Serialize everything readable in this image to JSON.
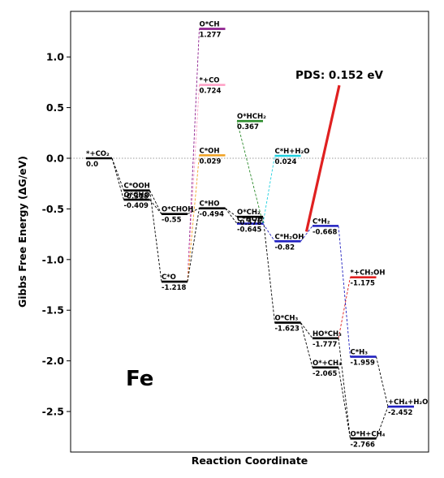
{
  "chart_data": {
    "type": "line",
    "xlabel": "Reaction Coordinate",
    "ylabel": "Gibbs Free Energy (ΔG/eV)",
    "ylim": [
      -2.9,
      1.45
    ],
    "yticks": [
      "1.0",
      "0.5",
      "0.0",
      "-0.5",
      "-1.0",
      "-1.5",
      "-2.0",
      "-2.5"
    ],
    "ytick_values": [
      1.0,
      0.5,
      0.0,
      -0.5,
      -1.0,
      -1.5,
      -2.0,
      -2.5
    ],
    "grid": false,
    "zero_line": true,
    "element_label": "Fe",
    "annotation": "PDS: 0.152 eV",
    "annotation_color": "#e02020",
    "levels": [
      {
        "id": "co2",
        "label": "*+CO₂",
        "value_text": "0.0",
        "x": 1,
        "y": 0.0,
        "color": "#000000"
      },
      {
        "id": "cooh",
        "label": "C*OOH",
        "value_text": "-0.318",
        "x": 2,
        "y": -0.318,
        "color": "#000000"
      },
      {
        "id": "ocho",
        "label": "O*CHO",
        "value_text": "-0.409",
        "x": 2,
        "y": -0.409,
        "color": "#000000"
      },
      {
        "id": "co",
        "label": "C*O",
        "value_text": "-1.218",
        "x": 3,
        "y": -1.218,
        "color": "#000000"
      },
      {
        "id": "ochoh",
        "label": "O*CHOH",
        "value_text": "-0.55",
        "x": 3,
        "y": -0.55,
        "color": "#000000"
      },
      {
        "id": "och",
        "label": "O*CH",
        "value_text": "1.277",
        "x": 4,
        "y": 1.277,
        "color": "#8b1a8b"
      },
      {
        "id": "plusco",
        "label": "*+CO",
        "value_text": "0.724",
        "x": 4,
        "y": 0.724,
        "color": "#ff9ec4"
      },
      {
        "id": "coh",
        "label": "C*OH",
        "value_text": "0.029",
        "x": 4,
        "y": 0.029,
        "color": "#f0a020"
      },
      {
        "id": "cho",
        "label": "C*HO",
        "value_text": "-0.494",
        "x": 4,
        "y": -0.494,
        "color": "#000000"
      },
      {
        "id": "ohch2",
        "label": "O*HCH₂",
        "value_text": "0.367",
        "x": 5,
        "y": 0.367,
        "color": "#2a8a2a"
      },
      {
        "id": "ch2",
        "label": "O*CH₂",
        "value_text": "-0.578",
        "x": 5,
        "y": -0.578,
        "color": "#000000"
      },
      {
        "id": "choh",
        "label": "C*HOH",
        "value_text": "-0.645",
        "x": 5,
        "y": -0.645,
        "color": "#2020c0"
      },
      {
        "id": "chh2o",
        "label": "C*H+H₂O",
        "value_text": "0.024",
        "x": 6,
        "y": 0.024,
        "color": "#20d0e0"
      },
      {
        "id": "ch2oh",
        "label": "C*H₂OH",
        "value_text": "-0.82",
        "x": 6,
        "y": -0.82,
        "color": "#2020c0"
      },
      {
        "id": "och3",
        "label": "O*CH₃",
        "value_text": "-1.623",
        "x": 6,
        "y": -1.623,
        "color": "#000000"
      },
      {
        "id": "hoch3",
        "label": "HO*CH₃",
        "value_text": "-1.777",
        "x": 7,
        "y": -1.777,
        "color": "#000000"
      },
      {
        "id": "och4",
        "label": "O*+CH₄",
        "value_text": "-2.065",
        "x": 7,
        "y": -2.065,
        "color": "#000000"
      },
      {
        "id": "ch2b",
        "label": "C*H₂",
        "value_text": "-0.668",
        "x": 7,
        "y": -0.668,
        "color": "#2020c0"
      },
      {
        "id": "ch3oh",
        "label": "*+CH₃OH",
        "value_text": "-1.175",
        "x": 8,
        "y": -1.175,
        "color": "#e02020"
      },
      {
        "id": "ch3",
        "label": "C*H₃",
        "value_text": "-1.959",
        "x": 8,
        "y": -1.959,
        "color": "#2020c0"
      },
      {
        "id": "ohch4",
        "label": "O*H+CH₄",
        "value_text": "-2.766",
        "x": 8,
        "y": -2.766,
        "color": "#000000"
      },
      {
        "id": "ch4h2o",
        "label": "+CH₄+H₂O",
        "value_text": "-2.452",
        "x": 9,
        "y": -2.452,
        "color": "#2020c0"
      }
    ],
    "connections": [
      {
        "from": "co2",
        "to": "cooh",
        "color": "#000000"
      },
      {
        "from": "co2",
        "to": "ocho",
        "color": "#000000"
      },
      {
        "from": "cooh",
        "to": "co",
        "color": "#000000"
      },
      {
        "from": "cooh",
        "to": "ochoh",
        "color": "#000000"
      },
      {
        "from": "ocho",
        "to": "ochoh",
        "color": "#000000"
      },
      {
        "from": "co",
        "to": "och",
        "color": "#8b1a8b"
      },
      {
        "from": "co",
        "to": "plusco",
        "color": "#ff9ec4"
      },
      {
        "from": "co",
        "to": "coh",
        "color": "#f0a020"
      },
      {
        "from": "co",
        "to": "cho",
        "color": "#000000"
      },
      {
        "from": "ochoh",
        "to": "cho",
        "color": "#000000"
      },
      {
        "from": "cho",
        "to": "ch2",
        "color": "#000000"
      },
      {
        "from": "cho",
        "to": "choh",
        "color": "#000000"
      },
      {
        "from": "ch2",
        "to": "och3",
        "color": "#000000"
      },
      {
        "from": "choh",
        "to": "ohch2",
        "color": "#2a8a2a"
      },
      {
        "from": "choh",
        "to": "chh2o",
        "color": "#20d0e0"
      },
      {
        "from": "choh",
        "to": "ch2oh",
        "color": "#2020c0"
      },
      {
        "from": "ch2oh",
        "to": "ch2b",
        "color": "#2020c0"
      },
      {
        "from": "och3",
        "to": "hoch3",
        "color": "#000000"
      },
      {
        "from": "och3",
        "to": "och4",
        "color": "#000000"
      },
      {
        "from": "hoch3",
        "to": "ch3oh",
        "color": "#e02020"
      },
      {
        "from": "hoch3",
        "to": "ohch4",
        "color": "#000000"
      },
      {
        "from": "och4",
        "to": "ohch4",
        "color": "#000000"
      },
      {
        "from": "ch2b",
        "to": "ch3",
        "color": "#2020c0"
      },
      {
        "from": "ch3",
        "to": "ch4h2o",
        "color": "#000000"
      },
      {
        "from": "ohch4",
        "to": "ch4h2o",
        "color": "#000000"
      }
    ]
  }
}
